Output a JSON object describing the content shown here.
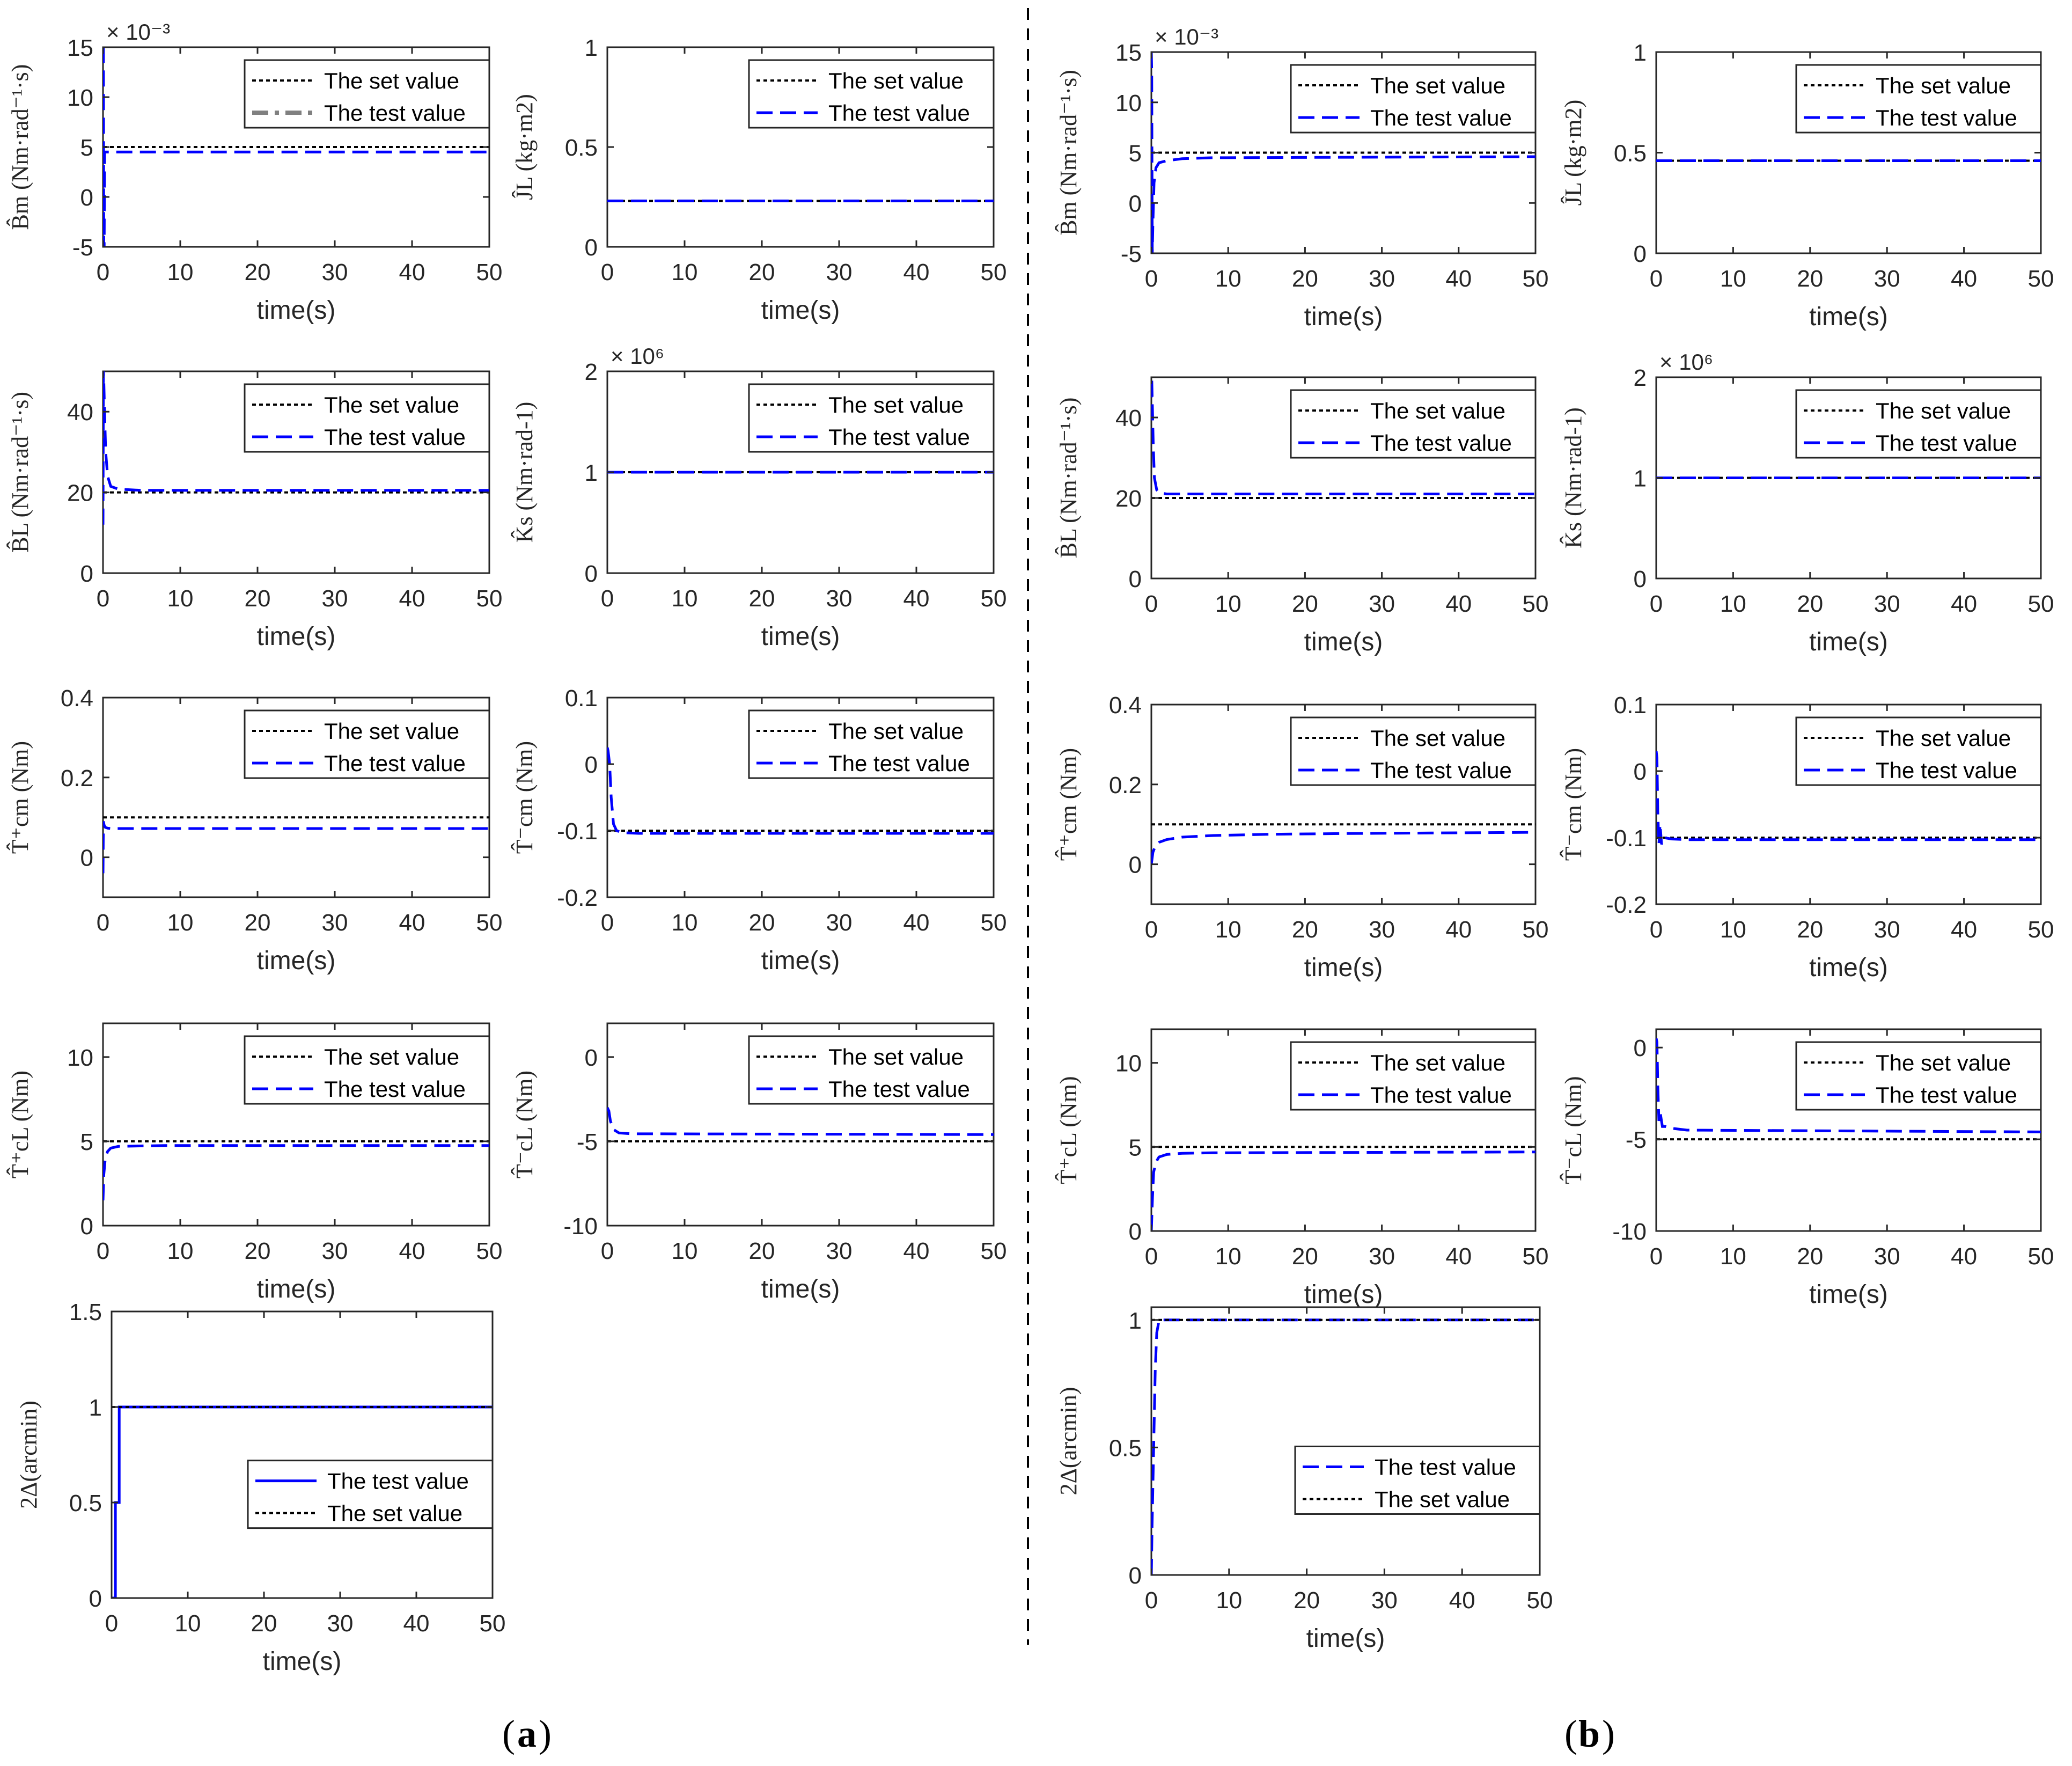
{
  "chart_data": [
    {
      "type": "line",
      "panel": "a",
      "ylabel": "B̂m (Nm·rad⁻¹·s)",
      "xlabel": "time(s)",
      "xlim": [
        0,
        50
      ],
      "ylim": [
        -5,
        15
      ],
      "yticks": [
        "-5",
        "0",
        "5",
        "10",
        "15"
      ],
      "xticks": [
        "0",
        "10",
        "20",
        "30",
        "40",
        "50"
      ],
      "exponent": "× 10⁻³",
      "legend_location": "top-right",
      "series": [
        {
          "name": "The set value",
          "style": "set",
          "x": [
            0,
            50
          ],
          "y": [
            5,
            5
          ]
        },
        {
          "name": "The test value",
          "style": "legend-gray",
          "x": [
            0,
            0.05,
            0.1,
            0.15,
            0.2,
            0.3,
            0.5,
            1,
            50
          ],
          "y": [
            15,
            15,
            -5,
            -5,
            4.5,
            4.5,
            4.5,
            4.5,
            4.5
          ]
        }
      ]
    },
    {
      "type": "line",
      "panel": "a",
      "ylabel": "ĴL (kg·m2)",
      "xlabel": "time(s)",
      "xlim": [
        0,
        50
      ],
      "ylim": [
        0,
        1
      ],
      "yticks": [
        "0",
        "0.5",
        "1"
      ],
      "xticks": [
        "0",
        "10",
        "20",
        "30",
        "40",
        "50"
      ],
      "legend_location": "top-right",
      "series": [
        {
          "name": "The set value",
          "style": "set",
          "x": [
            0,
            50
          ],
          "y": [
            0.23,
            0.23
          ]
        },
        {
          "name": "The test value",
          "style": "test",
          "x": [
            0,
            50
          ],
          "y": [
            0.23,
            0.23
          ]
        }
      ]
    },
    {
      "type": "line",
      "panel": "a",
      "ylabel": "B̂L (Nm·rad⁻¹·s)",
      "xlabel": "time(s)",
      "xlim": [
        0,
        50
      ],
      "ylim": [
        0,
        50
      ],
      "yticks": [
        "0",
        "20",
        "40"
      ],
      "xticks": [
        "0",
        "10",
        "20",
        "30",
        "40",
        "50"
      ],
      "legend_location": "top-right",
      "series": [
        {
          "name": "The set value",
          "style": "set",
          "x": [
            0,
            50
          ],
          "y": [
            20,
            20
          ]
        },
        {
          "name": "The test value",
          "style": "test",
          "x": [
            0,
            0.05,
            0.1,
            0.2,
            0.35,
            0.6,
            1,
            2,
            5,
            50
          ],
          "y": [
            12,
            50,
            48,
            40,
            30,
            24,
            21.5,
            20.8,
            20.5,
            20.5
          ]
        }
      ]
    },
    {
      "type": "line",
      "panel": "a",
      "ylabel": "K̂s (Nm·rad-1)",
      "xlabel": "time(s)",
      "xlim": [
        0,
        50
      ],
      "ylim": [
        0,
        2
      ],
      "yticks": [
        "0",
        "1",
        "2"
      ],
      "xticks": [
        "0",
        "10",
        "20",
        "30",
        "40",
        "50"
      ],
      "exponent": "× 10⁶",
      "legend_location": "top-right",
      "series": [
        {
          "name": "The set value",
          "style": "set",
          "x": [
            0,
            50
          ],
          "y": [
            1,
            1
          ]
        },
        {
          "name": "The test value",
          "style": "test",
          "x": [
            0,
            50
          ],
          "y": [
            1,
            1
          ]
        }
      ]
    },
    {
      "type": "line",
      "panel": "a",
      "ylabel": "T̂⁺cm (Nm)",
      "xlabel": "time(s)",
      "xlim": [
        0,
        50
      ],
      "ylim": [
        -0.1,
        0.4
      ],
      "yticks": [
        "0",
        "0.2",
        "0.4"
      ],
      "xticks": [
        "0",
        "10",
        "20",
        "30",
        "40",
        "50"
      ],
      "legend_location": "top-right",
      "series": [
        {
          "name": "The set value",
          "style": "set",
          "x": [
            0,
            50
          ],
          "y": [
            0.1,
            0.1
          ]
        },
        {
          "name": "The test value",
          "style": "test",
          "x": [
            0,
            0.05,
            0.15,
            0.3,
            0.6,
            1,
            50
          ],
          "y": [
            -0.04,
            0.09,
            0.08,
            0.075,
            0.073,
            0.072,
            0.072
          ]
        }
      ]
    },
    {
      "type": "line",
      "panel": "a",
      "ylabel": "T̂⁻cm (Nm)",
      "xlabel": "time(s)",
      "xlim": [
        0,
        50
      ],
      "ylim": [
        -0.2,
        0.1
      ],
      "yticks": [
        "-0.2",
        "-0.1",
        "0",
        "0.1"
      ],
      "xticks": [
        "0",
        "10",
        "20",
        "30",
        "40",
        "50"
      ],
      "legend_location": "top-right",
      "series": [
        {
          "name": "The set value",
          "style": "set",
          "x": [
            0,
            50
          ],
          "y": [
            -0.1,
            -0.1
          ]
        },
        {
          "name": "The test value",
          "style": "test",
          "x": [
            0,
            0.1,
            0.3,
            0.5,
            0.8,
            1.2,
            2,
            4,
            50
          ],
          "y": [
            0.025,
            0.02,
            0,
            -0.05,
            -0.09,
            -0.1,
            -0.103,
            -0.104,
            -0.104
          ]
        }
      ]
    },
    {
      "type": "line",
      "panel": "a",
      "ylabel": "T̂⁺cL (Nm)",
      "xlabel": "time(s)",
      "xlim": [
        0,
        50
      ],
      "ylim": [
        0,
        12
      ],
      "yticks": [
        "0",
        "5",
        "10"
      ],
      "xticks": [
        "0",
        "10",
        "20",
        "30",
        "40",
        "50"
      ],
      "legend_location": "top-right",
      "series": [
        {
          "name": "The set value",
          "style": "set",
          "x": [
            0,
            50
          ],
          "y": [
            5,
            5
          ]
        },
        {
          "name": "The test value",
          "style": "test",
          "x": [
            0,
            0.1,
            0.3,
            0.6,
            1,
            2,
            4,
            8,
            50
          ],
          "y": [
            1.5,
            3,
            4,
            4.4,
            4.6,
            4.7,
            4.72,
            4.75,
            4.75
          ]
        }
      ]
    },
    {
      "type": "line",
      "panel": "a",
      "ylabel": "T̂⁻cL (Nm)",
      "xlabel": "time(s)",
      "xlim": [
        0,
        50
      ],
      "ylim": [
        -10,
        2
      ],
      "yticks": [
        "-10",
        "-5",
        "0"
      ],
      "xticks": [
        "0",
        "10",
        "20",
        "30",
        "40",
        "50"
      ],
      "legend_location": "top-right",
      "series": [
        {
          "name": "The set value",
          "style": "set",
          "x": [
            0,
            50
          ],
          "y": [
            -5,
            -5
          ]
        },
        {
          "name": "The test value",
          "style": "test",
          "x": [
            0,
            0.2,
            0.4,
            0.8,
            1.5,
            3,
            50
          ],
          "y": [
            -3,
            -3.2,
            -3.8,
            -4.3,
            -4.5,
            -4.55,
            -4.6
          ]
        }
      ]
    },
    {
      "type": "line",
      "panel": "a",
      "ylabel": "2Δ(arcmin)",
      "xlabel": "time(s)",
      "xlim": [
        0,
        50
      ],
      "ylim": [
        0,
        1.5
      ],
      "yticks": [
        "0",
        "0.5",
        "1",
        "1.5"
      ],
      "xticks": [
        "0",
        "10",
        "20",
        "30",
        "40",
        "50"
      ],
      "legend_location": "center-right",
      "series": [
        {
          "name": "The test value",
          "style": "test-solid",
          "x": [
            0,
            0.5,
            0.5,
            1,
            1,
            50
          ],
          "y": [
            0,
            0,
            0.5,
            0.5,
            1,
            1
          ]
        },
        {
          "name": "The set value",
          "style": "set",
          "x": [
            0,
            50
          ],
          "y": [
            1,
            1
          ]
        }
      ]
    },
    {
      "type": "line",
      "panel": "b",
      "ylabel": "B̂m (Nm·rad⁻¹·s)",
      "xlabel": "time(s)",
      "xlim": [
        0,
        50
      ],
      "ylim": [
        -5,
        15
      ],
      "yticks": [
        "-5",
        "0",
        "5",
        "10",
        "15"
      ],
      "xticks": [
        "0",
        "10",
        "20",
        "30",
        "40",
        "50"
      ],
      "exponent": "× 10⁻³",
      "legend_location": "top-right",
      "series": [
        {
          "name": "The set value",
          "style": "set",
          "x": [
            0,
            50
          ],
          "y": [
            5,
            5
          ]
        },
        {
          "name": "The test value",
          "style": "test",
          "x": [
            0,
            0.05,
            0.12,
            0.2,
            0.35,
            0.6,
            1,
            2,
            4,
            8,
            50
          ],
          "y": [
            15,
            13,
            -5,
            -2,
            2,
            3.5,
            4,
            4.2,
            4.4,
            4.5,
            4.6
          ]
        }
      ]
    },
    {
      "type": "line",
      "panel": "b",
      "ylabel": "ĴL (kg·m2)",
      "xlabel": "time(s)",
      "xlim": [
        0,
        50
      ],
      "ylim": [
        0,
        1
      ],
      "yticks": [
        "0",
        "0.5",
        "1"
      ],
      "xticks": [
        "0",
        "10",
        "20",
        "30",
        "40",
        "50"
      ],
      "legend_location": "top-right",
      "series": [
        {
          "name": "The set value",
          "style": "set",
          "x": [
            0,
            50
          ],
          "y": [
            0.46,
            0.46
          ]
        },
        {
          "name": "The test value",
          "style": "test",
          "x": [
            0,
            50
          ],
          "y": [
            0.46,
            0.46
          ]
        }
      ]
    },
    {
      "type": "line",
      "panel": "b",
      "ylabel": "B̂L (Nm·rad⁻¹·s)",
      "xlabel": "time(s)",
      "xlim": [
        0,
        50
      ],
      "ylim": [
        0,
        50
      ],
      "yticks": [
        "0",
        "20",
        "40"
      ],
      "xticks": [
        "0",
        "10",
        "20",
        "30",
        "40",
        "50"
      ],
      "legend_location": "top-right",
      "series": [
        {
          "name": "The set value",
          "style": "set",
          "x": [
            0,
            50
          ],
          "y": [
            20,
            20
          ]
        },
        {
          "name": "The test value",
          "style": "test",
          "x": [
            0,
            0.05,
            0.12,
            0.25,
            0.4,
            0.7,
            1,
            2,
            50
          ],
          "y": [
            45,
            50,
            44,
            33,
            25,
            22,
            21.3,
            21,
            21
          ]
        }
      ]
    },
    {
      "type": "line",
      "panel": "b",
      "ylabel": "K̂s (Nm·rad-1)",
      "xlabel": "time(s)",
      "xlim": [
        0,
        50
      ],
      "ylim": [
        0,
        2
      ],
      "yticks": [
        "0",
        "1",
        "2"
      ],
      "xticks": [
        "0",
        "10",
        "20",
        "30",
        "40",
        "50"
      ],
      "exponent": "× 10⁶",
      "legend_location": "top-right",
      "series": [
        {
          "name": "The set value",
          "style": "set",
          "x": [
            0,
            50
          ],
          "y": [
            1,
            1
          ]
        },
        {
          "name": "The test value",
          "style": "test",
          "x": [
            0,
            50
          ],
          "y": [
            1,
            1
          ]
        }
      ]
    },
    {
      "type": "line",
      "panel": "b",
      "ylabel": "T̂⁺cm (Nm)",
      "xlabel": "time(s)",
      "xlim": [
        0,
        50
      ],
      "ylim": [
        -0.1,
        0.4
      ],
      "yticks": [
        "0",
        "0.2",
        "0.4"
      ],
      "xticks": [
        "0",
        "10",
        "20",
        "30",
        "40",
        "50"
      ],
      "legend_location": "top-right",
      "series": [
        {
          "name": "The set value",
          "style": "set",
          "x": [
            0,
            50
          ],
          "y": [
            0.1,
            0.1
          ]
        },
        {
          "name": "The test value",
          "style": "test",
          "x": [
            0,
            0.2,
            0.5,
            1,
            2,
            4,
            8,
            15,
            25,
            50
          ],
          "y": [
            0,
            0.03,
            0.045,
            0.055,
            0.062,
            0.068,
            0.072,
            0.075,
            0.077,
            0.08
          ]
        }
      ]
    },
    {
      "type": "line",
      "panel": "b",
      "ylabel": "T̂⁻cm (Nm)",
      "xlabel": "time(s)",
      "xlim": [
        0,
        50
      ],
      "ylim": [
        -0.2,
        0.1
      ],
      "yticks": [
        "-0.2",
        "-0.1",
        "0",
        "0.1"
      ],
      "xticks": [
        "0",
        "10",
        "20",
        "30",
        "40",
        "50"
      ],
      "legend_location": "top-right",
      "series": [
        {
          "name": "The set value",
          "style": "set",
          "x": [
            0,
            50
          ],
          "y": [
            -0.1,
            -0.1
          ]
        },
        {
          "name": "The test value",
          "style": "test",
          "x": [
            0,
            0.1,
            0.2,
            0.35,
            0.5,
            0.7,
            1,
            2,
            4,
            50
          ],
          "y": [
            0.03,
            0.02,
            -0.06,
            -0.11,
            -0.08,
            -0.11,
            -0.1,
            -0.102,
            -0.103,
            -0.103
          ]
        }
      ]
    },
    {
      "type": "line",
      "panel": "b",
      "ylabel": "T̂⁺cL (Nm)",
      "xlabel": "time(s)",
      "xlim": [
        0,
        50
      ],
      "ylim": [
        0,
        12
      ],
      "yticks": [
        "0",
        "5",
        "10"
      ],
      "xticks": [
        "0",
        "10",
        "20",
        "30",
        "40",
        "50"
      ],
      "legend_location": "top-right",
      "series": [
        {
          "name": "The set value",
          "style": "set",
          "x": [
            0,
            50
          ],
          "y": [
            5,
            5
          ]
        },
        {
          "name": "The test value",
          "style": "test",
          "x": [
            0,
            0.15,
            0.3,
            0.6,
            1,
            2,
            4,
            8,
            50
          ],
          "y": [
            0,
            2,
            3.5,
            4.1,
            4.4,
            4.55,
            4.62,
            4.65,
            4.7
          ]
        }
      ]
    },
    {
      "type": "line",
      "panel": "b",
      "ylabel": "T̂⁻cL (Nm)",
      "xlabel": "time(s)",
      "xlim": [
        0,
        50
      ],
      "ylim": [
        -10,
        1
      ],
      "yticks": [
        "-10",
        "-5",
        "0"
      ],
      "xticks": [
        "0",
        "10",
        "20",
        "30",
        "40",
        "50"
      ],
      "legend_location": "top-right",
      "series": [
        {
          "name": "The set value",
          "style": "set",
          "x": [
            0,
            50
          ],
          "y": [
            -5,
            -5
          ]
        },
        {
          "name": "The test value",
          "style": "test",
          "x": [
            0,
            0.1,
            0.2,
            0.35,
            0.5,
            0.8,
            1.2,
            2,
            4,
            50
          ],
          "y": [
            0.5,
            0.3,
            -2,
            -4,
            -3.5,
            -4.3,
            -4.3,
            -4.4,
            -4.5,
            -4.6
          ]
        }
      ]
    },
    {
      "type": "line",
      "panel": "b",
      "ylabel": "2Δ(arcmin)",
      "xlabel": "time(s)",
      "xlim": [
        0,
        50
      ],
      "ylim": [
        0,
        1.05
      ],
      "yticks": [
        "0",
        "0.5",
        "1"
      ],
      "xticks": [
        "0",
        "10",
        "20",
        "30",
        "40",
        "50"
      ],
      "legend_location": "center-right",
      "series": [
        {
          "name": "The test value",
          "style": "test",
          "x": [
            0,
            0.1,
            0.3,
            0.5,
            0.7,
            1,
            50
          ],
          "y": [
            0,
            0.2,
            0.5,
            0.8,
            0.95,
            1,
            1
          ]
        },
        {
          "name": "The set value",
          "style": "set",
          "x": [
            0,
            50
          ],
          "y": [
            1,
            1
          ]
        }
      ]
    }
  ],
  "captions": {
    "a": "a",
    "b": "b"
  },
  "colors": {
    "set": "#000000",
    "test": "#0000ff",
    "legend_gray": "#808080",
    "frame": "#262626"
  }
}
